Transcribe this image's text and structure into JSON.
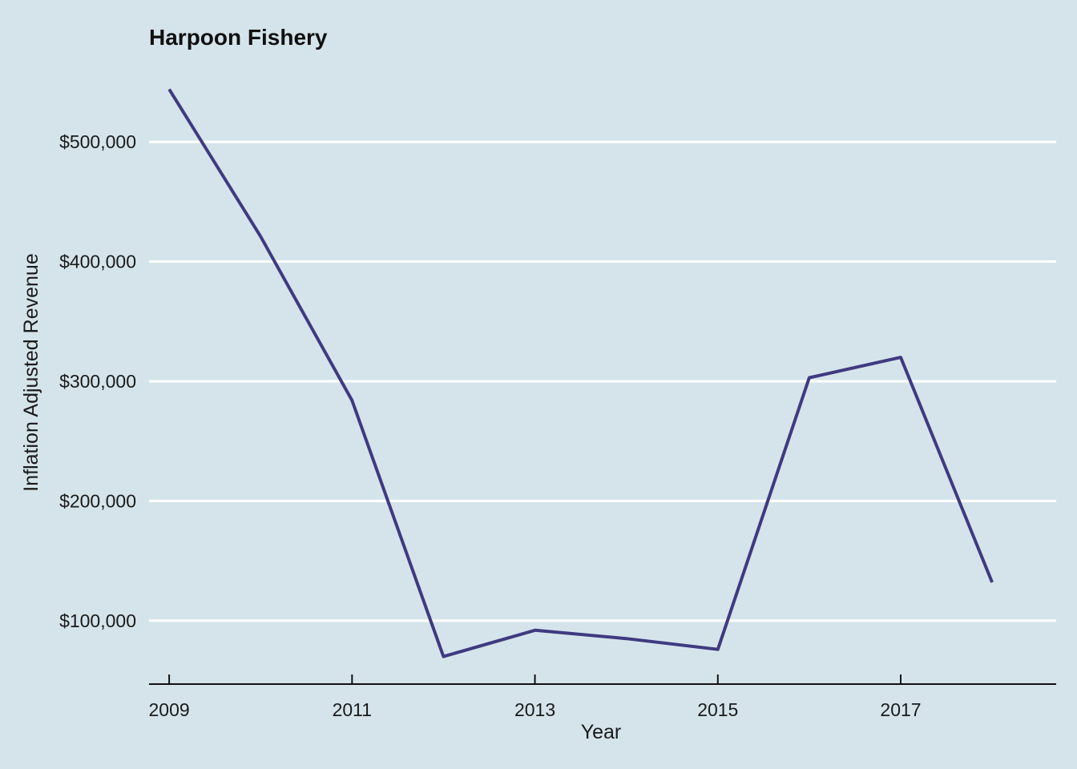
{
  "chart_data": {
    "type": "line",
    "title": "Harpoon Fishery",
    "xlabel": "Year",
    "ylabel": "Inflation Adjusted Revenue",
    "x": [
      2009,
      2010,
      2011,
      2012,
      2013,
      2014,
      2015,
      2016,
      2017,
      2018
    ],
    "series": [
      {
        "values": [
          544000,
          421000,
          284000,
          70000,
          92000,
          85000,
          76000,
          303000,
          320000,
          132000
        ]
      }
    ],
    "xticks": [
      2009,
      2011,
      2013,
      2015,
      2017
    ],
    "xtick_labels": [
      "2009",
      "2011",
      "2013",
      "2015",
      "2017"
    ],
    "yticks": [
      100000,
      200000,
      300000,
      400000,
      500000
    ],
    "ytick_labels": [
      "$100,000",
      "$200,000",
      "$300,000",
      "$400,000",
      "$500,000"
    ],
    "xlim": [
      2008.78,
      2018.7
    ],
    "ylim": [
      47000,
      565000
    ],
    "grid": "horizontal",
    "line_color": "#3f3a80",
    "grid_color": "#ffffff",
    "background": "#d5e4eb"
  }
}
